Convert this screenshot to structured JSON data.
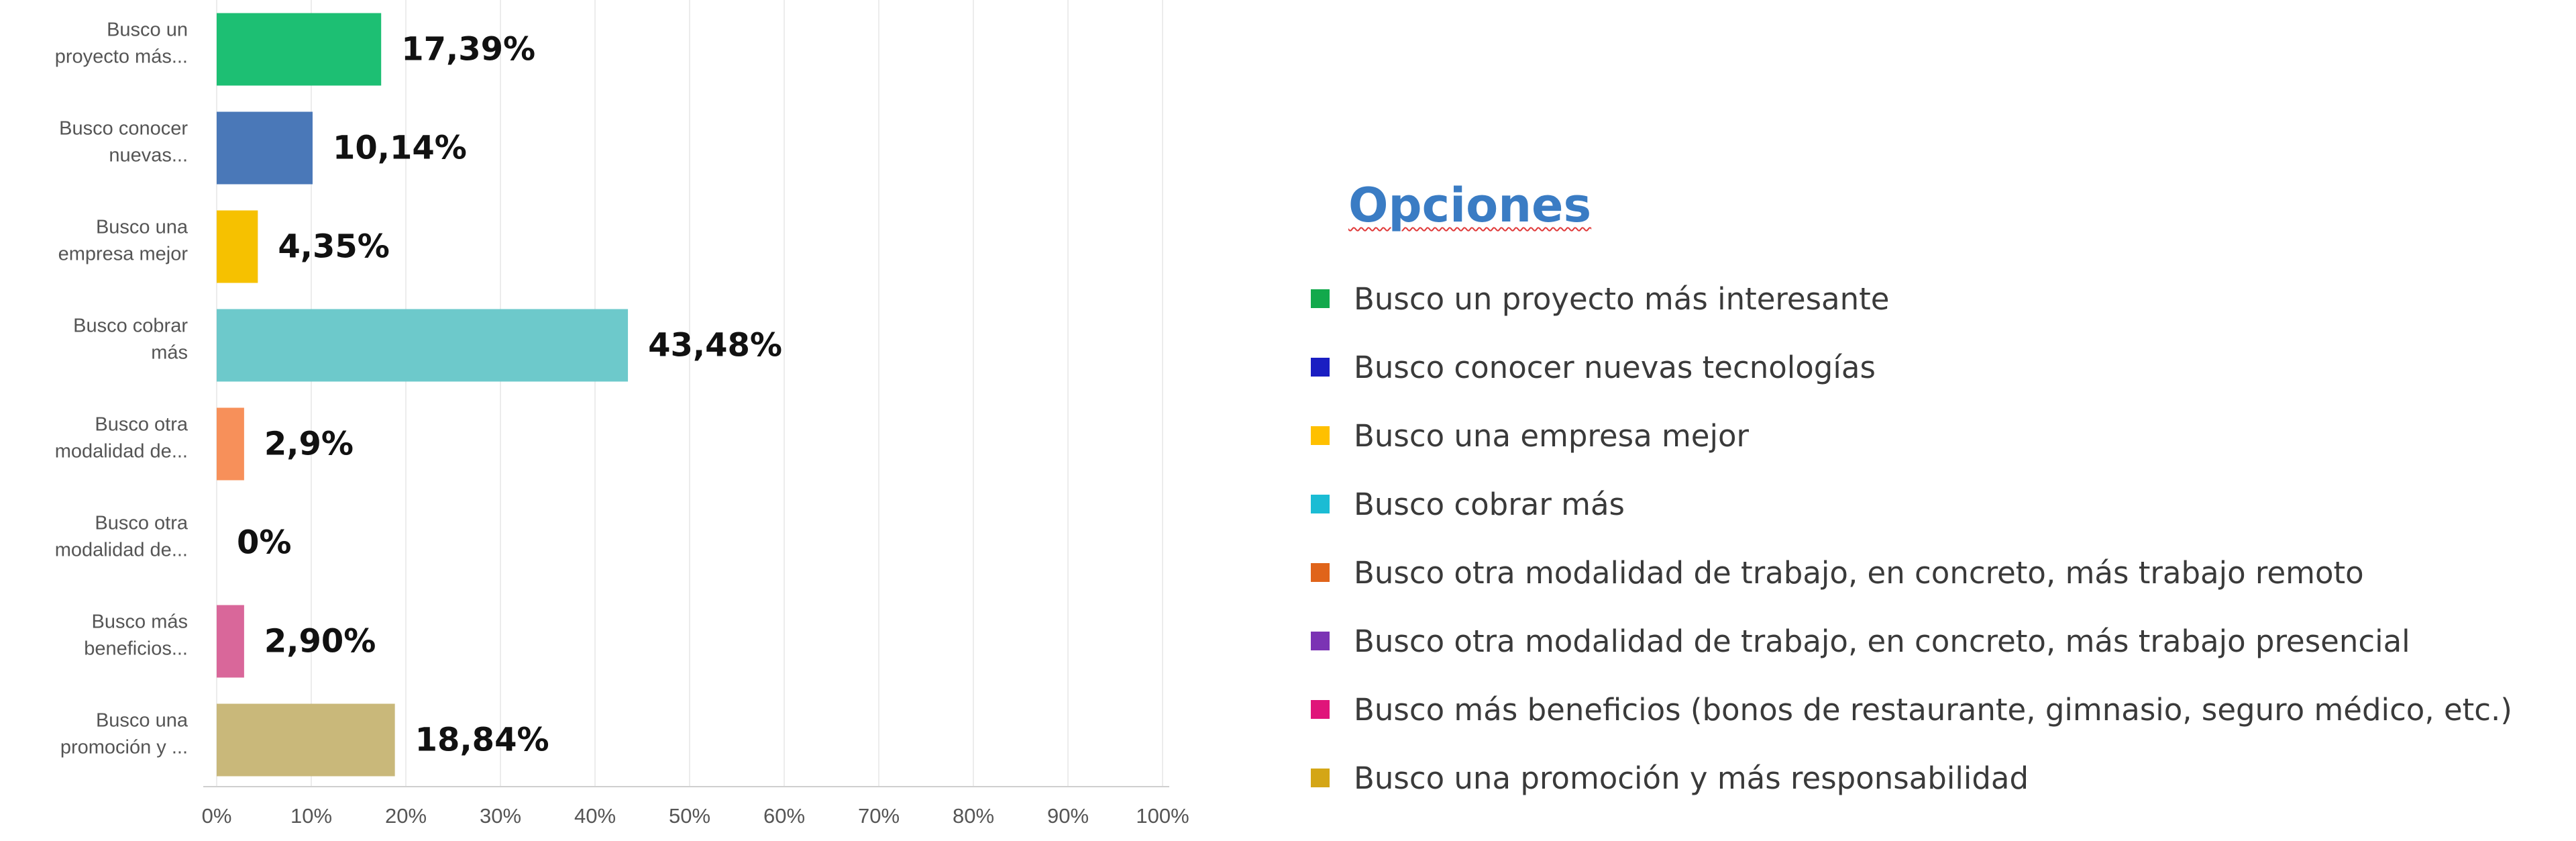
{
  "chart_data": {
    "type": "bar",
    "orientation": "horizontal",
    "categories": [
      [
        "Busco un",
        "proyecto más..."
      ],
      [
        "Busco conocer",
        "nuevas..."
      ],
      [
        "Busco una",
        "empresa mejor"
      ],
      [
        "Busco cobrar",
        "más"
      ],
      [
        "Busco otra",
        "modalidad de..."
      ],
      [
        "Busco otra",
        "modalidad de..."
      ],
      [
        "Busco más",
        "beneficios..."
      ],
      [
        "Busco una",
        "promoción y ..."
      ]
    ],
    "values": [
      17.39,
      10.14,
      4.35,
      43.48,
      2.9,
      0,
      2.9,
      18.84
    ],
    "value_labels": [
      "17,39%",
      "10,14%",
      "4,35%",
      "43,48%",
      "2,9%",
      "0%",
      "2,90%",
      "18,84%"
    ],
    "colors": [
      "#1dbf73",
      "#4a78b8",
      "#f6c100",
      "#6dc9cb",
      "#f7905a",
      "#9b6fc4",
      "#d9679a",
      "#c9b87a"
    ],
    "xlim": [
      0,
      100
    ],
    "x_ticks": [
      "0%",
      "10%",
      "20%",
      "30%",
      "40%",
      "50%",
      "60%",
      "70%",
      "80%",
      "90%",
      "100%"
    ],
    "grid": true,
    "legend_position": "right"
  },
  "legend": {
    "title": "Opciones",
    "items": [
      {
        "label": "Busco un proyecto más interesante",
        "color": "#12a94c"
      },
      {
        "label": "Busco conocer nuevas tecnologías",
        "color": "#1a1ec2"
      },
      {
        "label": "Busco una empresa mejor",
        "color": "#ffc000"
      },
      {
        "label": "Busco cobrar más",
        "color": "#1bbcd4"
      },
      {
        "label": "Busco otra modalidad de trabajo, en concreto, más trabajo remoto",
        "color": "#e0641a"
      },
      {
        "label": "Busco otra modalidad de trabajo, en concreto, más trabajo presencial",
        "color": "#7b33b4"
      },
      {
        "label": "Busco más beneficios (bonos de restaurante, gimnasio, seguro médico, etc.)",
        "color": "#e0157a"
      },
      {
        "label": "Busco una promoción y más responsabilidad",
        "color": "#d4a616"
      }
    ]
  }
}
